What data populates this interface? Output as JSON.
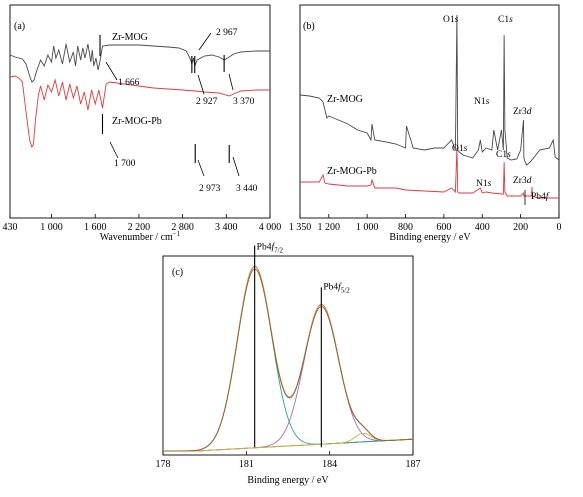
{
  "chart_data": [
    {
      "panel": "(a)",
      "type": "line",
      "xlabel": "Wavenumber / cm",
      "xlabel_sup": "−1",
      "x_reversed": false,
      "xlim": [
        430,
        4000
      ],
      "x_ticks": [
        {
          "v": 430,
          "label": "430"
        },
        {
          "v": 1000,
          "label": "1 000"
        },
        {
          "v": 1600,
          "label": "1 600"
        },
        {
          "v": 2200,
          "label": "2 200"
        },
        {
          "v": 2800,
          "label": "2 800"
        },
        {
          "v": 3400,
          "label": "3 400"
        },
        {
          "v": 4000,
          "label": "4 000"
        }
      ],
      "y_ticks_shown": false,
      "series": [
        {
          "name": "Zr-MOG",
          "color": "#4a4a4a",
          "x": [
            430,
            500,
            600,
            650,
            700,
            730,
            760,
            800,
            850,
            900,
            950,
            1000,
            1030,
            1060,
            1100,
            1150,
            1200,
            1250,
            1300,
            1330,
            1360,
            1400,
            1430,
            1460,
            1500,
            1540,
            1560,
            1580,
            1610,
            1640,
            1666,
            1700,
            1800,
            1900,
            2000,
            2200,
            2400,
            2600,
            2750,
            2850,
            2900,
            2927,
            2950,
            2967,
            3000,
            3100,
            3200,
            3300,
            3370,
            3420,
            3500,
            3600,
            3800,
            4000
          ],
          "y": [
            55,
            57,
            59,
            64,
            76,
            82,
            80,
            70,
            60,
            66,
            55,
            62,
            46,
            58,
            50,
            64,
            44,
            62,
            52,
            66,
            46,
            60,
            48,
            58,
            44,
            62,
            50,
            66,
            58,
            70,
            61,
            46,
            45,
            45,
            45,
            45,
            46,
            47,
            48,
            51,
            58,
            64,
            58,
            66,
            60,
            56,
            55,
            57,
            60,
            58,
            54,
            52,
            51,
            51
          ]
        },
        {
          "name": "Zr-MOG-Pb",
          "color": "#e03a3a",
          "x": [
            430,
            500,
            550,
            600,
            650,
            700,
            730,
            750,
            780,
            820,
            850,
            900,
            950,
            1000,
            1050,
            1100,
            1150,
            1200,
            1250,
            1300,
            1350,
            1400,
            1450,
            1500,
            1550,
            1600,
            1650,
            1700,
            1750,
            1800,
            2000,
            2200,
            2400,
            2600,
            2800,
            2973,
            3100,
            3300,
            3440,
            3500,
            3600,
            3800,
            4000
          ],
          "y": [
            77,
            76,
            78,
            82,
            112,
            140,
            147,
            145,
            120,
            95,
            86,
            100,
            85,
            92,
            80,
            96,
            82,
            100,
            84,
            98,
            86,
            104,
            92,
            110,
            90,
            104,
            90,
            108,
            84,
            82,
            84,
            86,
            88,
            89,
            90,
            91,
            92,
            93,
            96,
            94,
            91,
            90,
            90
          ]
        }
      ],
      "annotations": [
        {
          "label": "1 666",
          "series": "Zr-MOG"
        },
        {
          "label": "2 967",
          "series": "Zr-MOG"
        },
        {
          "label": "2 927",
          "series": "Zr-MOG"
        },
        {
          "label": "3 370",
          "series": "Zr-MOG"
        },
        {
          "label": "1 700",
          "series": "Zr-MOG-Pb"
        },
        {
          "label": "2 973",
          "series": "Zr-MOG-Pb"
        },
        {
          "label": "3 440",
          "series": "Zr-MOG-Pb"
        }
      ]
    },
    {
      "panel": "(b)",
      "type": "line",
      "xlabel": "Binding energy / eV",
      "x_reversed": true,
      "xlim": [
        1350,
        0
      ],
      "x_ticks": [
        {
          "v": 1350,
          "label": "1 350"
        },
        {
          "v": 1200,
          "label": "1 200"
        },
        {
          "v": 1000,
          "label": "1 000"
        },
        {
          "v": 800,
          "label": "800"
        },
        {
          "v": 600,
          "label": "600"
        },
        {
          "v": 400,
          "label": "400"
        },
        {
          "v": 200,
          "label": "200"
        },
        {
          "v": 0,
          "label": "0"
        }
      ],
      "y_ticks_shown": false,
      "series": [
        {
          "name": "Zr-MOG",
          "color": "#4a4a4a",
          "x": [
            1350,
            1300,
            1250,
            1230,
            1210,
            1200,
            1150,
            1100,
            1050,
            1000,
            980,
            975,
            960,
            900,
            850,
            800,
            795,
            760,
            700,
            650,
            600,
            560,
            540,
            532,
            528,
            520,
            500,
            450,
            420,
            410,
            400,
            380,
            350,
            340,
            320,
            300,
            290,
            286,
            282,
            270,
            250,
            220,
            200,
            185,
            183,
            180,
            170,
            150,
            100,
            50,
            30,
            20,
            0
          ],
          "y": [
            95,
            96,
            98,
            102,
            118,
            116,
            120,
            124,
            130,
            133,
            140,
            124,
            140,
            142,
            144,
            148,
            126,
            148,
            150,
            148,
            148,
            140,
            150,
            15,
            150,
            152,
            155,
            158,
            150,
            140,
            152,
            148,
            150,
            130,
            150,
            130,
            150,
            35,
            130,
            158,
            160,
            159,
            150,
            120,
            158,
            160,
            165,
            162,
            150,
            148,
            140,
            157,
            160
          ]
        },
        {
          "name": "Zr-MOG-Pb",
          "color": "#e03a3a",
          "x": [
            1350,
            1300,
            1250,
            1230,
            1220,
            1200,
            1150,
            1100,
            1050,
            1000,
            980,
            975,
            960,
            900,
            850,
            800,
            700,
            600,
            560,
            540,
            532,
            528,
            520,
            500,
            450,
            410,
            400,
            380,
            350,
            300,
            290,
            286,
            282,
            270,
            250,
            200,
            185,
            183,
            180,
            150,
            143,
            141,
            138,
            130,
            100,
            50,
            0
          ],
          "y": [
            182,
            182,
            182,
            175,
            183,
            184,
            185,
            186,
            186,
            186,
            185,
            180,
            188,
            188,
            188,
            190,
            191,
            192,
            188,
            192,
            148,
            192,
            193,
            193,
            193,
            188,
            193,
            192,
            193,
            194,
            194,
            162,
            192,
            196,
            196,
            196,
            193,
            196,
            196,
            196,
            196,
            187,
            196,
            197,
            198,
            198,
            198
          ]
        }
      ],
      "labels": [
        {
          "text": "O1",
          "sub": "s"
        },
        {
          "text": "C1",
          "sub": "s"
        },
        {
          "text": "N1",
          "sub": "s"
        },
        {
          "text": "Zr3",
          "sub": "d"
        },
        {
          "text": "O1",
          "sub": "s"
        },
        {
          "text": "C1",
          "sub": "s"
        },
        {
          "text": "N1",
          "sub": "s"
        },
        {
          "text": "Zr3",
          "sub": "d"
        },
        {
          "text": "Pb4",
          "sub": "f"
        }
      ],
      "series_labels": [
        "Zr-MOG",
        "Zr-MOG-Pb"
      ]
    },
    {
      "panel": "(c)",
      "type": "line",
      "xlabel": "Binding energy / eV",
      "x_reversed": false,
      "xlim": [
        178,
        187
      ],
      "x_ticks": [
        {
          "v": 178,
          "label": "178"
        },
        {
          "v": 181,
          "label": "181"
        },
        {
          "v": 184,
          "label": "184"
        },
        {
          "v": 187,
          "label": "187"
        }
      ],
      "y_ticks_shown": false,
      "peaks": [
        {
          "label": "Pb4",
          "sub": "f",
          "subsub": "7/2",
          "center": 181.3,
          "amp": 0.955,
          "sigma": 0.62,
          "color": "#2aa58a"
        },
        {
          "label": "Pb4",
          "sub": "f",
          "subsub": "5/2",
          "center": 183.7,
          "amp": 0.735,
          "sigma": 0.62,
          "color": "#9b6fd0"
        },
        {
          "center": 185.2,
          "amp": 0.045,
          "sigma": 0.28,
          "color": "#c9b23a"
        }
      ],
      "baseline_color": "#7a4a3a",
      "envelope_color": "#e07b4a",
      "measured_color": "#7a6a2a"
    }
  ]
}
